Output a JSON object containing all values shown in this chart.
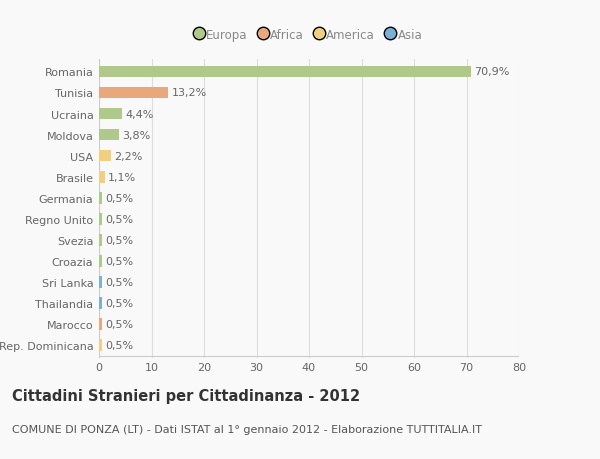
{
  "countries": [
    "Romania",
    "Tunisia",
    "Ucraina",
    "Moldova",
    "USA",
    "Brasile",
    "Germania",
    "Regno Unito",
    "Svezia",
    "Croazia",
    "Sri Lanka",
    "Thailandia",
    "Marocco",
    "Rep. Dominicana"
  ],
  "values": [
    70.9,
    13.2,
    4.4,
    3.8,
    2.2,
    1.1,
    0.5,
    0.5,
    0.5,
    0.5,
    0.5,
    0.5,
    0.5,
    0.5
  ],
  "labels": [
    "70,9%",
    "13,2%",
    "4,4%",
    "3,8%",
    "2,2%",
    "1,1%",
    "0,5%",
    "0,5%",
    "0,5%",
    "0,5%",
    "0,5%",
    "0,5%",
    "0,5%",
    "0,5%"
  ],
  "colors": [
    "#aec98a",
    "#e8a87c",
    "#aec98a",
    "#aec98a",
    "#f0d080",
    "#f0d080",
    "#aec98a",
    "#aec98a",
    "#aec98a",
    "#aec98a",
    "#7ab0d4",
    "#7ab0d4",
    "#e8a87c",
    "#f0d080"
  ],
  "legend_labels": [
    "Europa",
    "Africa",
    "America",
    "Asia"
  ],
  "legend_colors": [
    "#aec98a",
    "#e8a87c",
    "#f0d080",
    "#7ab0d4"
  ],
  "title": "Cittadini Stranieri per Cittadinanza - 2012",
  "subtitle": "COMUNE DI PONZA (LT) - Dati ISTAT al 1° gennaio 2012 - Elaborazione TUTTITALIA.IT",
  "xlim": [
    0,
    80
  ],
  "xticks": [
    0,
    10,
    20,
    30,
    40,
    50,
    60,
    70,
    80
  ],
  "background_color": "#f9f9f9",
  "grid_color": "#dddddd",
  "bar_height": 0.55,
  "label_fontsize": 8,
  "tick_fontsize": 8,
  "ytick_fontsize": 8,
  "title_fontsize": 10.5,
  "subtitle_fontsize": 8
}
